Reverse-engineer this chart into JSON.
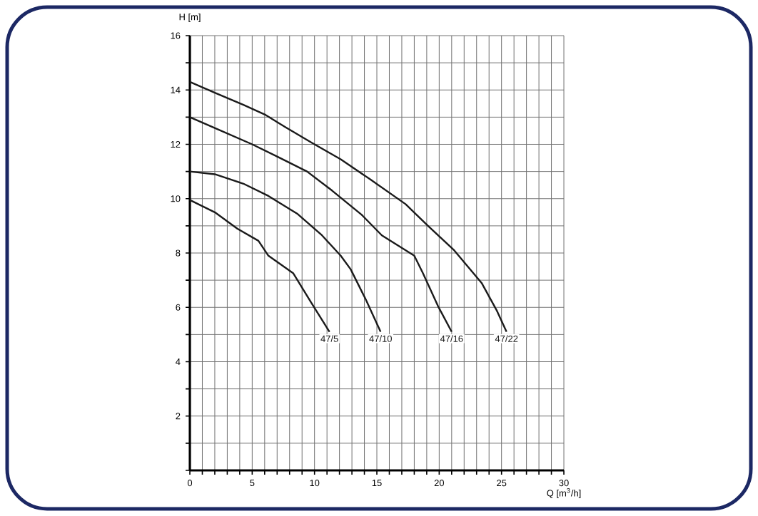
{
  "chart_data": {
    "type": "line",
    "xlabel": "Q [m$^{3}$/h]",
    "ylabel": "H [m]",
    "xlim": [
      0,
      30
    ],
    "ylim": [
      0,
      16
    ],
    "xticks": [
      0,
      {
        "value": 1,
        "label": null
      },
      {
        "value": 2,
        "label": null
      },
      {
        "value": 3,
        "label": null
      },
      {
        "value": 4,
        "label": null
      },
      5,
      {
        "value": 6,
        "label": null
      },
      {
        "value": 7,
        "label": null
      },
      {
        "value": 8,
        "label": null
      },
      {
        "value": 9,
        "label": null
      },
      10,
      {
        "value": 11,
        "label": null
      },
      {
        "value": 12,
        "label": null
      },
      {
        "value": 13,
        "label": null
      },
      {
        "value": 14,
        "label": null
      },
      15,
      {
        "value": 16,
        "label": null
      },
      {
        "value": 17,
        "label": null
      },
      {
        "value": 18,
        "label": null
      },
      {
        "value": 19,
        "label": null
      },
      20,
      {
        "value": 21,
        "label": null
      },
      {
        "value": 22,
        "label": null
      },
      {
        "value": 23,
        "label": null
      },
      {
        "value": 24,
        "label": null
      },
      25,
      {
        "value": 26,
        "label": null
      },
      {
        "value": 27,
        "label": null
      },
      {
        "value": 28,
        "label": null
      },
      {
        "value": 29,
        "label": null
      },
      30
    ],
    "yticks": [
      {
        "value": 0,
        "label": null
      },
      {
        "value": 1,
        "label": null
      },
      2,
      {
        "value": 3,
        "label": null
      },
      4,
      {
        "value": 5,
        "label": null
      },
      6,
      {
        "value": 7,
        "label": null
      },
      8,
      {
        "value": 9,
        "label": null
      },
      10,
      {
        "value": 11,
        "label": null
      },
      12,
      {
        "value": 13,
        "label": null
      },
      14,
      {
        "value": 15,
        "label": null
      },
      16
    ],
    "grid": true,
    "marker": "none",
    "line_style": "solid",
    "series": [
      {
        "name": "47/22",
        "color": "#1a1a1a",
        "x": [
          0,
          2,
          4.3,
          6,
          7.6,
          9.8,
          12.1,
          14.5,
          17.3,
          19.1,
          21.2,
          23.4,
          24.6,
          25.4
        ],
        "values": [
          14.3,
          13.9,
          13.45,
          13.1,
          12.65,
          12.05,
          11.45,
          10.7,
          9.8,
          9,
          8.1,
          6.9,
          5.9,
          5.1
        ]
      },
      {
        "name": "47/16",
        "color": "#1a1a1a",
        "x": [
          0,
          2,
          5,
          7,
          9.4,
          11.4,
          13.8,
          15.4,
          18,
          18.7,
          19.9,
          21
        ],
        "values": [
          13,
          12.6,
          12,
          11.55,
          11,
          10.3,
          9.4,
          8.65,
          7.9,
          7.25,
          6.05,
          5.1
        ]
      },
      {
        "name": "47/10",
        "color": "#1a1a1a",
        "x": [
          0,
          2,
          4.3,
          6.3,
          8.6,
          10.6,
          12.1,
          12.9,
          14.1,
          15.3
        ],
        "values": [
          11,
          10.9,
          10.55,
          10.1,
          9.45,
          8.65,
          7.9,
          7.4,
          6.3,
          5.1
        ]
      },
      {
        "name": "47/5",
        "color": "#1a1a1a",
        "x": [
          0,
          2,
          3.8,
          5.5,
          6.3,
          8.3,
          9.7,
          11.2
        ],
        "values": [
          9.95,
          9.5,
          8.9,
          8.45,
          7.9,
          7.25,
          6.2,
          5.1
        ]
      }
    ]
  }
}
